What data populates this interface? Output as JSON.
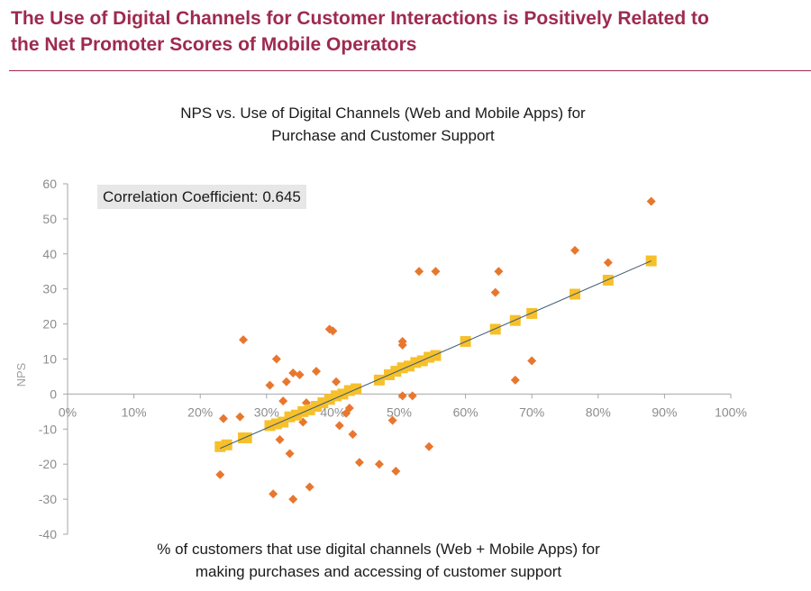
{
  "headline": {
    "line1": "The Use of Digital Channels for Customer Interactions is Positively Related to",
    "line2": "the Net Promoter Scores of Mobile Operators"
  },
  "chart_data": {
    "type": "scatter",
    "title_lines": [
      "NPS vs. Use of Digital Channels (Web and Mobile Apps) for",
      "Purchase and Customer Support"
    ],
    "xlabel_lines": [
      "% of customers that use digital channels (Web + Mobile Apps) for",
      "making purchases and accessing of customer support"
    ],
    "ylabel": "NPS",
    "annotation": "Correlation Coefficient: 0.645",
    "xlim": [
      0,
      100
    ],
    "ylim": [
      -40,
      60
    ],
    "x_ticks": [
      0,
      10,
      20,
      30,
      40,
      50,
      60,
      70,
      80,
      90,
      100
    ],
    "x_tick_labels": [
      "0%",
      "10%",
      "20%",
      "30%",
      "40%",
      "50%",
      "60%",
      "70%",
      "80%",
      "90%",
      "100%"
    ],
    "y_ticks": [
      -40,
      -30,
      -20,
      -10,
      0,
      10,
      20,
      30,
      40,
      50,
      60
    ],
    "y_tick_labels": [
      "-40",
      "-30",
      "-20",
      "-10",
      "0",
      "10",
      "20",
      "30",
      "40",
      "50",
      "60"
    ],
    "grid": false,
    "legend": "none",
    "trendline": {
      "x": [
        23,
        88
      ],
      "y": [
        -15.5,
        38
      ]
    },
    "series": [
      {
        "marker": "diamond",
        "color": "#e8772e",
        "points": [
          [
            23,
            -23
          ],
          [
            23.5,
            -7
          ],
          [
            26,
            -6.5
          ],
          [
            26.5,
            15.5
          ],
          [
            30.5,
            2.5
          ],
          [
            31,
            -28.5
          ],
          [
            31.5,
            10
          ],
          [
            32,
            -13
          ],
          [
            32.5,
            -2
          ],
          [
            33,
            3.5
          ],
          [
            33.5,
            -17
          ],
          [
            34,
            -30
          ],
          [
            34,
            6
          ],
          [
            35,
            5.5
          ],
          [
            35.5,
            -8
          ],
          [
            36,
            -2.5
          ],
          [
            36.5,
            -26.5
          ],
          [
            37.5,
            6.5
          ],
          [
            39.5,
            18.5
          ],
          [
            40,
            18
          ],
          [
            40.5,
            3.5
          ],
          [
            41,
            -9
          ],
          [
            42,
            -5.5
          ],
          [
            42.5,
            -4
          ],
          [
            43,
            -11.5
          ],
          [
            44,
            -19.5
          ],
          [
            47,
            -20
          ],
          [
            49,
            -7.5
          ],
          [
            49.5,
            -22
          ],
          [
            50.5,
            15
          ],
          [
            50.5,
            14
          ],
          [
            50.5,
            -0.5
          ],
          [
            52,
            -0.5
          ],
          [
            53,
            35
          ],
          [
            54.5,
            -15
          ],
          [
            55.5,
            35
          ],
          [
            64.5,
            29
          ],
          [
            65,
            35
          ],
          [
            67.5,
            4
          ],
          [
            70,
            9.5
          ],
          [
            76.5,
            41
          ],
          [
            81.5,
            37.5
          ],
          [
            88,
            55
          ]
        ]
      },
      {
        "marker": "square",
        "color": "#f6c02b",
        "points": [
          [
            23,
            -15
          ],
          [
            24,
            -14.5
          ],
          [
            26.5,
            -12.5
          ],
          [
            27,
            -12.5
          ],
          [
            30.5,
            -9
          ],
          [
            31.5,
            -8.5
          ],
          [
            32.5,
            -8
          ],
          [
            33.5,
            -6.5
          ],
          [
            34.5,
            -6
          ],
          [
            35.5,
            -5
          ],
          [
            36.5,
            -4.5
          ],
          [
            37.5,
            -3.5
          ],
          [
            38.5,
            -2.5
          ],
          [
            39.5,
            -1.5
          ],
          [
            40.5,
            -0.5
          ],
          [
            41.5,
            0
          ],
          [
            42.5,
            1
          ],
          [
            43.5,
            1.5
          ],
          [
            47,
            4
          ],
          [
            48.5,
            5.5
          ],
          [
            49.5,
            6.5
          ],
          [
            50.5,
            7.5
          ],
          [
            51.5,
            8
          ],
          [
            52.5,
            9
          ],
          [
            53.5,
            9.5
          ],
          [
            54.5,
            10.5
          ],
          [
            55.5,
            11
          ],
          [
            60,
            15
          ],
          [
            64.5,
            18.5
          ],
          [
            67.5,
            21
          ],
          [
            70,
            23
          ],
          [
            76.5,
            28.5
          ],
          [
            81.5,
            32.5
          ],
          [
            88,
            38
          ]
        ]
      }
    ]
  }
}
